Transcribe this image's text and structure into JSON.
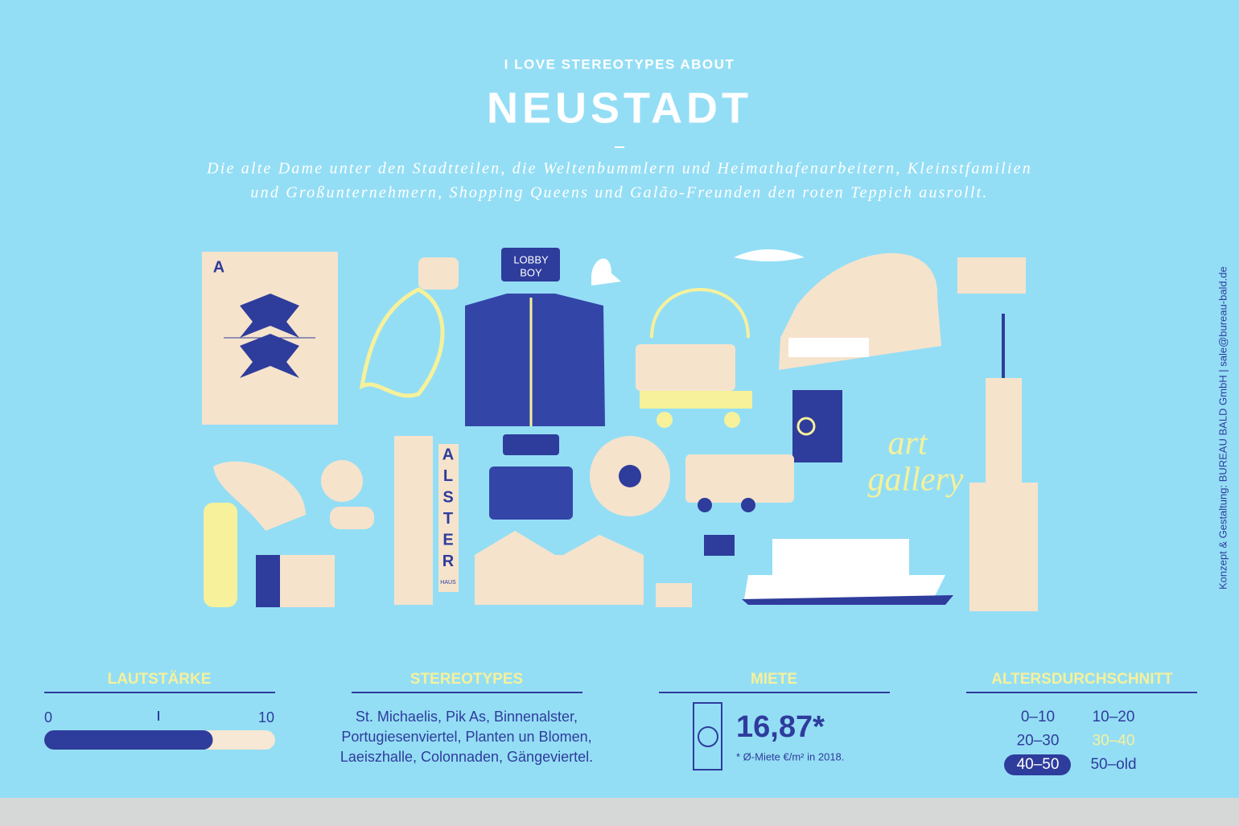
{
  "header": {
    "kicker": "I LOVE STEREOTYPES ABOUT",
    "title": "NEUSTADT",
    "description": [
      "Die alte Dame unter den Stadtteilen, die Weltenbummlern und Heimathafenarbeitern, Kleinstfamilien",
      "und Großunternehmern, Shopping Queens und Galão-Freunden den roten Teppich ausrollt."
    ]
  },
  "illustrations": {
    "card_rank": "A",
    "lobby_sign": [
      "LOBBY",
      "BOY"
    ],
    "alster_letters": [
      "A",
      "L",
      "S",
      "T",
      "E",
      "R"
    ],
    "alster_small": "HAUS",
    "neon": [
      "art",
      "gallery"
    ]
  },
  "credit": "Konzept & Gestaltung: BUREAU BALD GmbH | sale@bureau-bald.de",
  "loudness": {
    "label": "LAUTSTÄRKE",
    "min": 0,
    "max": 10,
    "value": 7.3
  },
  "stereotypes": {
    "label": "STEREOTYPES",
    "lines": [
      "St. Michaelis, Pik As, Binnenalster,",
      "Portugiesenviertel, Planten un Blomen,",
      "Laeiszhalle, Colonnaden, Gängeviertel."
    ]
  },
  "rent": {
    "label": "MIETE",
    "value": "16,87*",
    "note": "* Ø-Miete €/m² in 2018."
  },
  "age": {
    "label": "ALTERSDURCHSCHNITT",
    "groups": [
      {
        "text": "0–10",
        "state": "normal"
      },
      {
        "text": "10–20",
        "state": "normal"
      },
      {
        "text": "20–30",
        "state": "normal"
      },
      {
        "text": "30–40",
        "state": "highlight"
      },
      {
        "text": "40–50",
        "state": "selected"
      },
      {
        "text": "50–old",
        "state": "normal"
      }
    ]
  }
}
